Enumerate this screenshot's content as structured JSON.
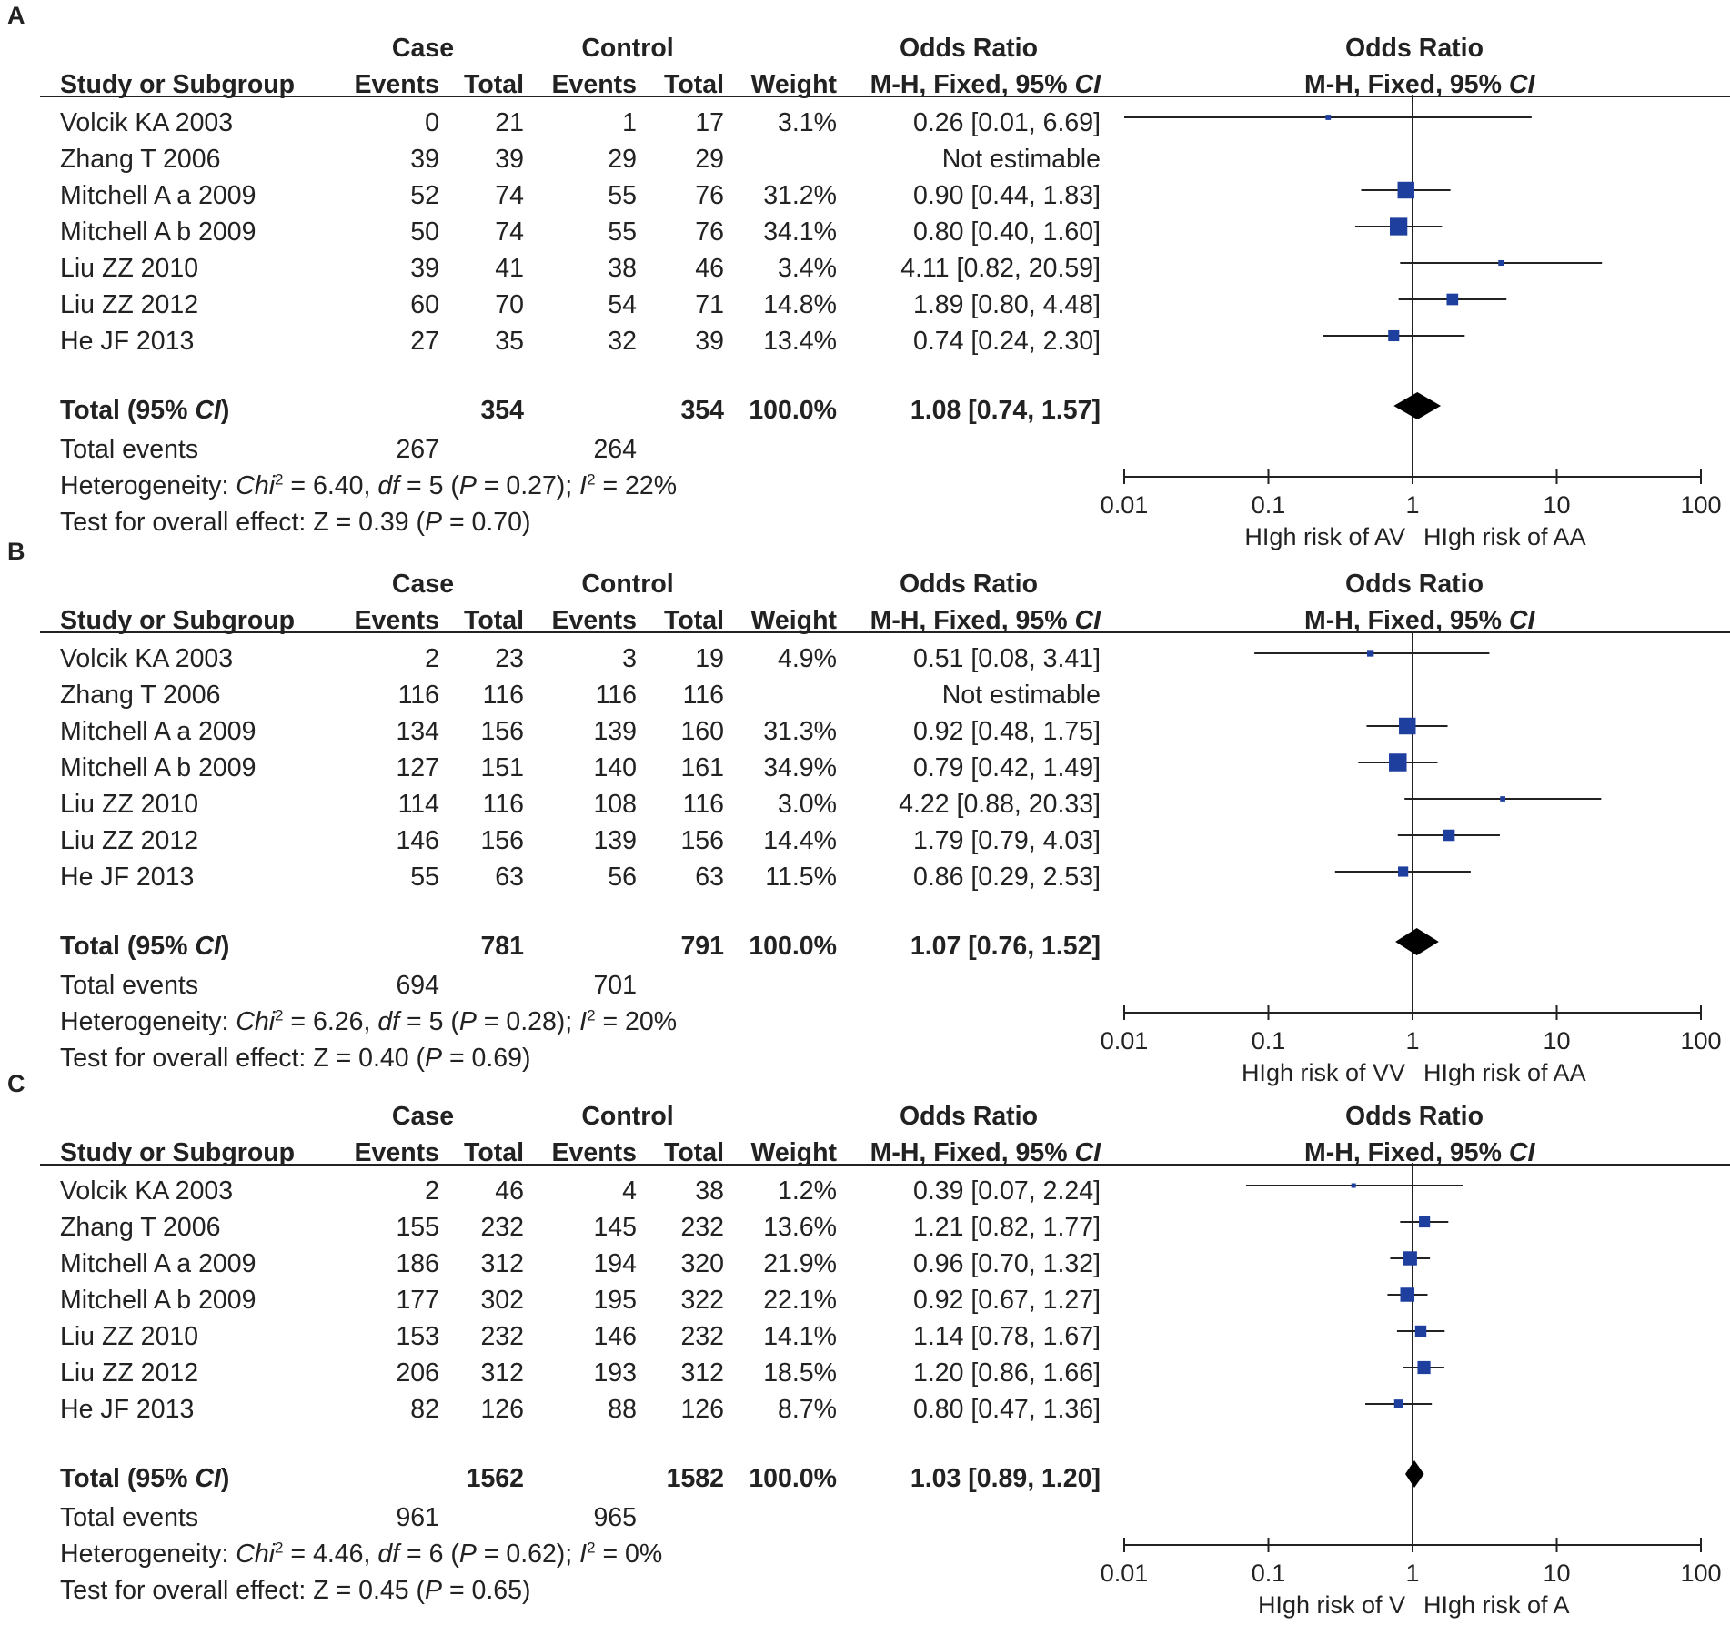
{
  "headers": {
    "study": "Study or Subgroup",
    "case": "Case",
    "control": "Control",
    "events": "Events",
    "total": "Total",
    "weight": "Weight",
    "or": "Odds Ratio",
    "method": "M-H, Fixed, 95% ",
    "ci_italic": "CI",
    "total_ci_prefix": "Total (95% ",
    "total_ci_suffix": ")",
    "total_events": "Total events",
    "heterogeneity_prefix": "Heterogeneity: ",
    "chi": "Chi",
    "overall_prefix": "Test for overall effect: ",
    "p": "P",
    "i": "I"
  },
  "colors": {
    "marker": "#1f3f9f",
    "text": "#222222"
  },
  "chart_data": [
    {
      "panel": "A",
      "type": "forest",
      "xscale": "log",
      "xlim": [
        0.01,
        100
      ],
      "ticks": [
        "0.01",
        "0.1",
        "1",
        "10",
        "100"
      ],
      "favours_left": "HIgh risk of AV",
      "favours_right": "HIgh risk of AA",
      "studies": [
        {
          "name": "Volcik KA 2003",
          "case_events": "0",
          "case_total": "21",
          "ctrl_events": "1",
          "ctrl_total": "17",
          "weight": "3.1%",
          "or_text": "0.26 [0.01, 6.69]",
          "or": 0.26,
          "lo": 0.01,
          "hi": 6.69,
          "w": 3.1
        },
        {
          "name": "Zhang T 2006",
          "case_events": "39",
          "case_total": "39",
          "ctrl_events": "29",
          "ctrl_total": "29",
          "weight": "",
          "or_text": "Not estimable",
          "or": null,
          "lo": null,
          "hi": null,
          "w": 0
        },
        {
          "name": "Mitchell A a 2009",
          "case_events": "52",
          "case_total": "74",
          "ctrl_events": "55",
          "ctrl_total": "76",
          "weight": "31.2%",
          "or_text": "0.90 [0.44, 1.83]",
          "or": 0.9,
          "lo": 0.44,
          "hi": 1.83,
          "w": 31.2
        },
        {
          "name": "Mitchell A b 2009",
          "case_events": "50",
          "case_total": "74",
          "ctrl_events": "55",
          "ctrl_total": "76",
          "weight": "34.1%",
          "or_text": "0.80 [0.40, 1.60]",
          "or": 0.8,
          "lo": 0.4,
          "hi": 1.6,
          "w": 34.1
        },
        {
          "name": "Liu ZZ 2010",
          "case_events": "39",
          "case_total": "41",
          "ctrl_events": "38",
          "ctrl_total": "46",
          "weight": "3.4%",
          "or_text": "4.11 [0.82, 20.59]",
          "or": 4.11,
          "lo": 0.82,
          "hi": 20.59,
          "w": 3.4
        },
        {
          "name": "Liu ZZ 2012",
          "case_events": "60",
          "case_total": "70",
          "ctrl_events": "54",
          "ctrl_total": "71",
          "weight": "14.8%",
          "or_text": "1.89 [0.80, 4.48]",
          "or": 1.89,
          "lo": 0.8,
          "hi": 4.48,
          "w": 14.8
        },
        {
          "name": "He JF 2013",
          "case_events": "27",
          "case_total": "35",
          "ctrl_events": "32",
          "ctrl_total": "39",
          "weight": "13.4%",
          "or_text": "0.74 [0.24, 2.30]",
          "or": 0.74,
          "lo": 0.24,
          "hi": 2.3,
          "w": 13.4
        }
      ],
      "total": {
        "case_total": "354",
        "ctrl_total": "354",
        "weight": "100.0%",
        "or_text": "1.08 [0.74, 1.57]",
        "or": 1.08,
        "lo": 0.74,
        "hi": 1.57
      },
      "total_events": {
        "case": "267",
        "ctrl": "264"
      },
      "heterogeneity": {
        "chi2": " = 6.40, ",
        "df_label": "df",
        "df": " = 5 (",
        "p_val": " = 0.27); ",
        "i2": " = 22%"
      },
      "overall": {
        "z": "Z = 0.39 (",
        "p_val": " = 0.70)"
      }
    },
    {
      "panel": "B",
      "type": "forest",
      "xscale": "log",
      "xlim": [
        0.01,
        100
      ],
      "ticks": [
        "0.01",
        "0.1",
        "1",
        "10",
        "100"
      ],
      "favours_left": "HIgh risk of VV",
      "favours_right": "HIgh risk of AA",
      "studies": [
        {
          "name": "Volcik KA 2003",
          "case_events": "2",
          "case_total": "23",
          "ctrl_events": "3",
          "ctrl_total": "19",
          "weight": "4.9%",
          "or_text": "0.51 [0.08, 3.41]",
          "or": 0.51,
          "lo": 0.08,
          "hi": 3.41,
          "w": 4.9
        },
        {
          "name": "Zhang T 2006",
          "case_events": "116",
          "case_total": "116",
          "ctrl_events": "116",
          "ctrl_total": "116",
          "weight": "",
          "or_text": "Not estimable",
          "or": null,
          "lo": null,
          "hi": null,
          "w": 0
        },
        {
          "name": "Mitchell A a 2009",
          "case_events": "134",
          "case_total": "156",
          "ctrl_events": "139",
          "ctrl_total": "160",
          "weight": "31.3%",
          "or_text": "0.92 [0.48, 1.75]",
          "or": 0.92,
          "lo": 0.48,
          "hi": 1.75,
          "w": 31.3
        },
        {
          "name": "Mitchell A b 2009",
          "case_events": "127",
          "case_total": "151",
          "ctrl_events": "140",
          "ctrl_total": "161",
          "weight": "34.9%",
          "or_text": "0.79 [0.42, 1.49]",
          "or": 0.79,
          "lo": 0.42,
          "hi": 1.49,
          "w": 34.9
        },
        {
          "name": "Liu ZZ 2010",
          "case_events": "114",
          "case_total": "116",
          "ctrl_events": "108",
          "ctrl_total": "116",
          "weight": "3.0%",
          "or_text": "4.22 [0.88, 20.33]",
          "or": 4.22,
          "lo": 0.88,
          "hi": 20.33,
          "w": 3.0
        },
        {
          "name": "Liu ZZ 2012",
          "case_events": "146",
          "case_total": "156",
          "ctrl_events": "139",
          "ctrl_total": "156",
          "weight": "14.4%",
          "or_text": "1.79 [0.79, 4.03]",
          "or": 1.79,
          "lo": 0.79,
          "hi": 4.03,
          "w": 14.4
        },
        {
          "name": "He JF 2013",
          "case_events": "55",
          "case_total": "63",
          "ctrl_events": "56",
          "ctrl_total": "63",
          "weight": "11.5%",
          "or_text": "0.86 [0.29, 2.53]",
          "or": 0.86,
          "lo": 0.29,
          "hi": 2.53,
          "w": 11.5
        }
      ],
      "total": {
        "case_total": "781",
        "ctrl_total": "791",
        "weight": "100.0%",
        "or_text": "1.07 [0.76, 1.52]",
        "or": 1.07,
        "lo": 0.76,
        "hi": 1.52
      },
      "total_events": {
        "case": "694",
        "ctrl": "701"
      },
      "heterogeneity": {
        "chi2": " = 6.26, ",
        "df_label": "df",
        "df": " = 5 (",
        "p_val": " = 0.28); ",
        "i2": " = 20%"
      },
      "overall": {
        "z": "Z = 0.40 (",
        "p_val": " = 0.69)"
      }
    },
    {
      "panel": "C",
      "type": "forest",
      "xscale": "log",
      "xlim": [
        0.01,
        100
      ],
      "ticks": [
        "0.01",
        "0.1",
        "1",
        "10",
        "100"
      ],
      "favours_left": "HIgh risk of V",
      "favours_right": "HIgh risk of A",
      "studies": [
        {
          "name": "Volcik KA 2003",
          "case_events": "2",
          "case_total": "46",
          "ctrl_events": "4",
          "ctrl_total": "38",
          "weight": "1.2%",
          "or_text": "0.39 [0.07, 2.24]",
          "or": 0.39,
          "lo": 0.07,
          "hi": 2.24,
          "w": 1.2
        },
        {
          "name": "Zhang T 2006",
          "case_events": "155",
          "case_total": "232",
          "ctrl_events": "145",
          "ctrl_total": "232",
          "weight": "13.6%",
          "or_text": "1.21 [0.82, 1.77]",
          "or": 1.21,
          "lo": 0.82,
          "hi": 1.77,
          "w": 13.6
        },
        {
          "name": "Mitchell A a 2009",
          "case_events": "186",
          "case_total": "312",
          "ctrl_events": "194",
          "ctrl_total": "320",
          "weight": "21.9%",
          "or_text": "0.96 [0.70, 1.32]",
          "or": 0.96,
          "lo": 0.7,
          "hi": 1.32,
          "w": 21.9
        },
        {
          "name": "Mitchell A b 2009",
          "case_events": "177",
          "case_total": "302",
          "ctrl_events": "195",
          "ctrl_total": "322",
          "weight": "22.1%",
          "or_text": "0.92 [0.67, 1.27]",
          "or": 0.92,
          "lo": 0.67,
          "hi": 1.27,
          "w": 22.1
        },
        {
          "name": "Liu ZZ 2010",
          "case_events": "153",
          "case_total": "232",
          "ctrl_events": "146",
          "ctrl_total": "232",
          "weight": "14.1%",
          "or_text": "1.14 [0.78, 1.67]",
          "or": 1.14,
          "lo": 0.78,
          "hi": 1.67,
          "w": 14.1
        },
        {
          "name": "Liu ZZ 2012",
          "case_events": "206",
          "case_total": "312",
          "ctrl_events": "193",
          "ctrl_total": "312",
          "weight": "18.5%",
          "or_text": "1.20 [0.86, 1.66]",
          "or": 1.2,
          "lo": 0.86,
          "hi": 1.66,
          "w": 18.5
        },
        {
          "name": "He JF 2013",
          "case_events": "82",
          "case_total": "126",
          "ctrl_events": "88",
          "ctrl_total": "126",
          "weight": "8.7%",
          "or_text": "0.80 [0.47, 1.36]",
          "or": 0.8,
          "lo": 0.47,
          "hi": 1.36,
          "w": 8.7
        }
      ],
      "total": {
        "case_total": "1562",
        "ctrl_total": "1582",
        "weight": "100.0%",
        "or_text": "1.03 [0.89, 1.20]",
        "or": 1.03,
        "lo": 0.89,
        "hi": 1.2
      },
      "total_events": {
        "case": "961",
        "ctrl": "965"
      },
      "heterogeneity": {
        "chi2": " = 4.46, ",
        "df_label": "df",
        "df": " = 6 (",
        "p_val": " = 0.62); ",
        "i2": " = 0%"
      },
      "overall": {
        "z": "Z = 0.45 (",
        "p_val": " = 0.65)"
      }
    }
  ]
}
